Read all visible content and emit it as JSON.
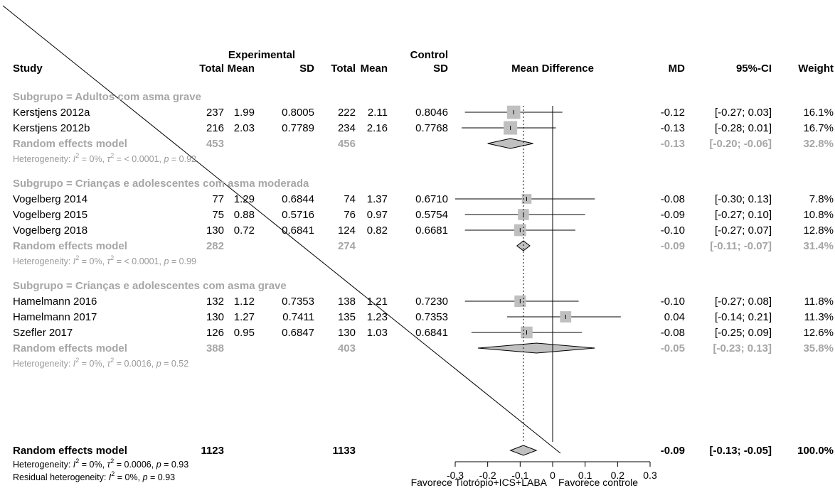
{
  "headers": {
    "study": "Study",
    "experimental": "Experimental",
    "control": "Control",
    "total": "Total",
    "mean": "Mean",
    "sd": "SD",
    "mean_difference": "Mean Difference",
    "md": "MD",
    "ci": "95%-CI",
    "weight": "Weight"
  },
  "colors": {
    "study_box": "#bfbfbf",
    "diamond": "#c0c0c0",
    "subgroup_text": "#a6a6a6",
    "overall_text": "#000000"
  },
  "chart_data": {
    "type": "forest",
    "xlim": [
      -0.3,
      0.3
    ],
    "ticks": [
      -0.3,
      -0.2,
      -0.1,
      0,
      0.1,
      0.2,
      0.3
    ],
    "tick_labels": [
      "-0.3",
      "-0.2",
      "-0.1",
      "0",
      "0.1",
      "0.2",
      "0.3"
    ],
    "reference_line": 0,
    "overall_line": -0.09,
    "xlabel_left": "Favorece Tiotrópio+ICS+LABA",
    "xlabel_right": "Favorece controle",
    "subgroups": [
      {
        "label": "Subgrupo = Adultos com asma grave",
        "studies": [
          {
            "name": "Kerstjens 2012a",
            "e_total": "237",
            "e_mean": "1.99",
            "e_sd": "0.8005",
            "c_total": "222",
            "c_mean": "2.11",
            "c_sd": "0.8046",
            "md": -0.12,
            "lo": -0.27,
            "hi": 0.03,
            "md_text": "-0.12",
            "ci_text": "[-0.27; 0.03]",
            "weight_text": "16.1%",
            "weight": 16.1
          },
          {
            "name": "Kerstjens 2012b",
            "e_total": "216",
            "e_mean": "2.03",
            "e_sd": "0.7789",
            "c_total": "234",
            "c_mean": "2.16",
            "c_sd": "0.7768",
            "md": -0.13,
            "lo": -0.28,
            "hi": 0.01,
            "md_text": "-0.13",
            "ci_text": "[-0.28; 0.01]",
            "weight_text": "16.7%",
            "weight": 16.7
          }
        ],
        "model": {
          "label": "Random effects model",
          "e_total": "453",
          "c_total": "456",
          "md": -0.13,
          "lo": -0.2,
          "hi": -0.06,
          "md_text": "-0.13",
          "ci_text": "[-0.20; -0.06]",
          "weight_text": "32.8%"
        },
        "heterogeneity": {
          "prefix": "Heterogeneity: ",
          "i2": "I",
          "i2_value": " = 0%, ",
          "tau2": "τ",
          "tau2_value": " = < 0.0001, ",
          "p": "p",
          "p_value": " = 0.92"
        }
      },
      {
        "label": "Subgrupo = Crianças e adolescentes com asma moderada",
        "studies": [
          {
            "name": "Vogelberg 2014",
            "e_total": "77",
            "e_mean": "1.29",
            "e_sd": "0.6844",
            "c_total": "74",
            "c_mean": "1.37",
            "c_sd": "0.6710",
            "md": -0.08,
            "lo": -0.3,
            "hi": 0.13,
            "md_text": "-0.08",
            "ci_text": "[-0.30; 0.13]",
            "weight_text": "7.8%",
            "weight": 7.8
          },
          {
            "name": "Vogelberg 2015",
            "e_total": "75",
            "e_mean": "0.88",
            "e_sd": "0.5716",
            "c_total": "76",
            "c_mean": "0.97",
            "c_sd": "0.5754",
            "md": -0.09,
            "lo": -0.27,
            "hi": 0.1,
            "md_text": "-0.09",
            "ci_text": "[-0.27; 0.10]",
            "weight_text": "10.8%",
            "weight": 10.8
          },
          {
            "name": "Vogelberg 2018",
            "e_total": "130",
            "e_mean": "0.72",
            "e_sd": "0.6841",
            "c_total": "124",
            "c_mean": "0.82",
            "c_sd": "0.6681",
            "md": -0.1,
            "lo": -0.27,
            "hi": 0.07,
            "md_text": "-0.10",
            "ci_text": "[-0.27; 0.07]",
            "weight_text": "12.8%",
            "weight": 12.8
          }
        ],
        "model": {
          "label": "Random effects model",
          "e_total": "282",
          "c_total": "274",
          "md": -0.09,
          "lo": -0.11,
          "hi": -0.07,
          "md_text": "-0.09",
          "ci_text": "[-0.11; -0.07]",
          "weight_text": "31.4%"
        },
        "heterogeneity": {
          "prefix": "Heterogeneity: ",
          "i2": "I",
          "i2_value": " = 0%, ",
          "tau2": "τ",
          "tau2_value": " = < 0.0001, ",
          "p": "p",
          "p_value": " = 0.99"
        }
      },
      {
        "label": "Subgrupo = Crianças e adolescentes com asma grave",
        "studies": [
          {
            "name": "Hamelmann 2016",
            "e_total": "132",
            "e_mean": "1.12",
            "e_sd": "0.7353",
            "c_total": "138",
            "c_mean": "1.21",
            "c_sd": "0.7230",
            "md": -0.1,
            "lo": -0.27,
            "hi": 0.08,
            "md_text": "-0.10",
            "ci_text": "[-0.27; 0.08]",
            "weight_text": "11.8%",
            "weight": 11.8
          },
          {
            "name": "Hamelmann 2017",
            "e_total": "130",
            "e_mean": "1.27",
            "e_sd": "0.7411",
            "c_total": "135",
            "c_mean": "1.23",
            "c_sd": "0.7353",
            "md": 0.04,
            "lo": -0.14,
            "hi": 0.21,
            "md_text": "0.04",
            "ci_text": "[-0.14; 0.21]",
            "weight_text": "11.3%",
            "weight": 11.3
          },
          {
            "name": "Szefler 2017",
            "e_total": "126",
            "e_mean": "0.95",
            "e_sd": "0.6847",
            "c_total": "130",
            "c_mean": "1.03",
            "c_sd": "0.6841",
            "md": -0.08,
            "lo": -0.25,
            "hi": 0.09,
            "md_text": "-0.08",
            "ci_text": "[-0.25; 0.09]",
            "weight_text": "12.6%",
            "weight": 12.6
          }
        ],
        "model": {
          "label": "Random effects model",
          "e_total": "388",
          "c_total": "403",
          "md": -0.05,
          "lo": -0.23,
          "hi": 0.13,
          "md_text": "-0.05",
          "ci_text": "[-0.23; 0.13]",
          "weight_text": "35.8%"
        },
        "heterogeneity": {
          "prefix": "Heterogeneity: ",
          "i2": "I",
          "i2_value": " = 0%, ",
          "tau2": "τ",
          "tau2_value": " = 0.0016, ",
          "p": "p",
          "p_value": " = 0.52"
        }
      }
    ],
    "overall": {
      "label": "Random effects model",
      "e_total": "1123",
      "c_total": "1133",
      "md": -0.09,
      "lo": -0.13,
      "hi": -0.05,
      "md_text": "-0.09",
      "ci_text": "[-0.13; -0.05]",
      "weight_text": "100.0%",
      "heterogeneity": {
        "prefix": "Heterogeneity: ",
        "i2": "I",
        "i2_value": " = 0%, ",
        "tau2": "τ",
        "tau2_value": " = 0.0006, ",
        "p": "p",
        "p_value": " = 0.93"
      },
      "residual": {
        "prefix": "Residual heterogeneity: ",
        "i2": "I",
        "i2_value": " = 0%, ",
        "p": "p",
        "p_value": " = 0.93"
      }
    }
  }
}
